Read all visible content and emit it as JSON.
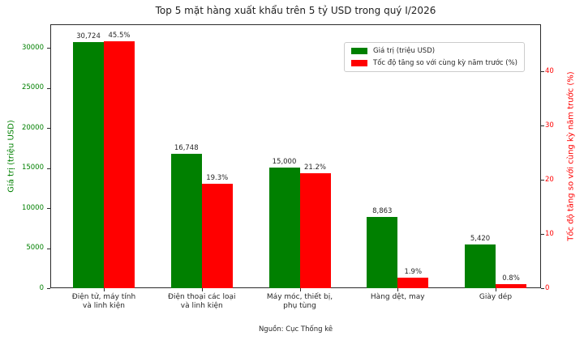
{
  "title": "Top 5 mặt hàng xuất khẩu trên 5 tỷ USD trong quý I/2026",
  "source": "Nguồn: Cục Thống kê",
  "colors": {
    "value_green": "#008000",
    "growth_red": "#ff0000"
  },
  "legend": [
    {
      "label": "Giá trị (triệu USD)",
      "color": "#008000"
    },
    {
      "label": "Tốc độ tăng so với cùng kỳ năm trước (%)",
      "color": "#ff0000"
    }
  ],
  "chart_data": {
    "type": "bar",
    "title": "Top 5 mặt hàng xuất khẩu trên 5 tỷ USD trong quý I/2026",
    "categories": [
      "Điện tử, máy tính\nvà linh kiện",
      "Điện thoại các loại\nvà linh kiện",
      "Máy móc, thiết bị,\nphụ tùng",
      "Hàng dệt, may",
      "Giày dép"
    ],
    "series": [
      {
        "name": "Giá trị (triệu USD)",
        "axis": "left",
        "color": "#008000",
        "values": [
          30724,
          16748,
          15000,
          8863,
          5420
        ],
        "labels": [
          "30,724",
          "16,748",
          "15,000",
          "8,863",
          "5,420"
        ]
      },
      {
        "name": "Tốc độ tăng so với cùng kỳ năm trước (%)",
        "axis": "right",
        "color": "#ff0000",
        "values": [
          45.5,
          19.3,
          21.2,
          1.9,
          0.8
        ],
        "labels": [
          "45.5%",
          "19.3%",
          "21.2%",
          "1.9%",
          "0.8%"
        ]
      }
    ],
    "left_axis": {
      "label": "Giá trị (triệu USD)",
      "ticks": [
        0,
        5000,
        10000,
        15000,
        20000,
        25000,
        30000
      ],
      "range": [
        0,
        32930
      ]
    },
    "right_axis": {
      "label": "Tốc độ tăng so với cùng kỳ năm trước (%)",
      "ticks": [
        0,
        10,
        20,
        30,
        40
      ],
      "range": [
        0,
        48.7
      ]
    },
    "legend_position": "upper right",
    "grid": false,
    "source": "Nguồn: Cục Thống kê"
  }
}
